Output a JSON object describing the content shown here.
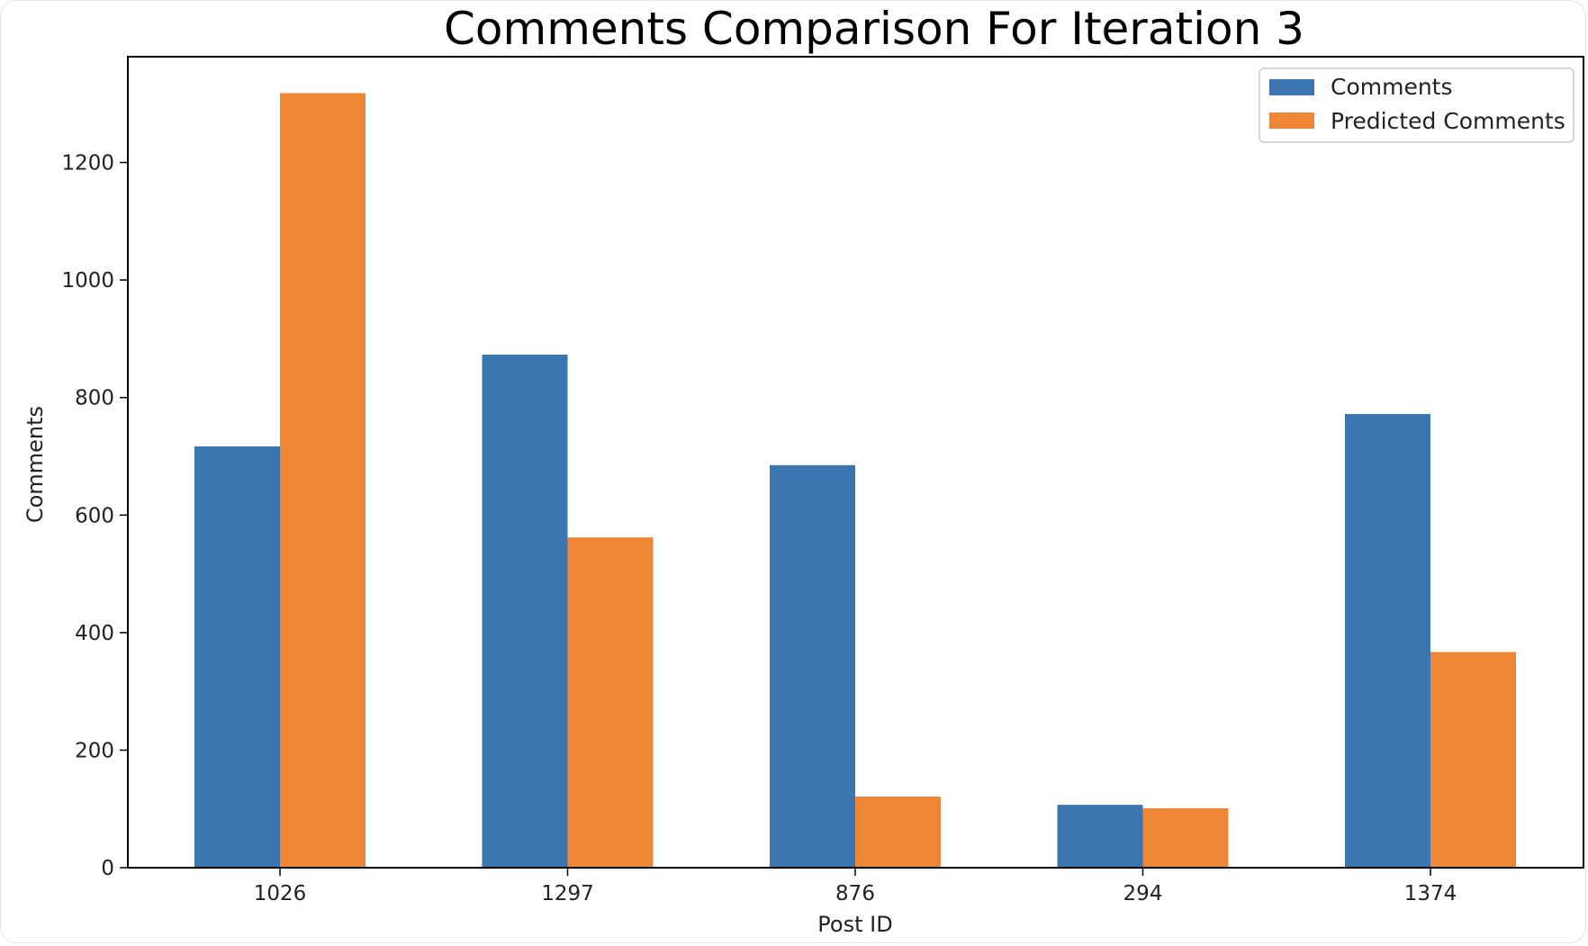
{
  "chart_data": {
    "type": "bar",
    "title": "Comments Comparison For Iteration 3",
    "xlabel": "Post ID",
    "ylabel": "Comments",
    "categories": [
      "1026",
      "1297",
      "876",
      "294",
      "1374"
    ],
    "series": [
      {
        "name": "Comments",
        "color": "#3b75af",
        "values": [
          717,
          873,
          685,
          107,
          772
        ]
      },
      {
        "name": "Predicted Comments",
        "color": "#ef8636",
        "values": [
          1318,
          562,
          121,
          101,
          367
        ]
      }
    ],
    "ylim": [
      0,
      1380
    ],
    "yticks": [
      0,
      200,
      400,
      600,
      800,
      1000,
      1200
    ],
    "grid": false,
    "legend_position": "top-right"
  }
}
